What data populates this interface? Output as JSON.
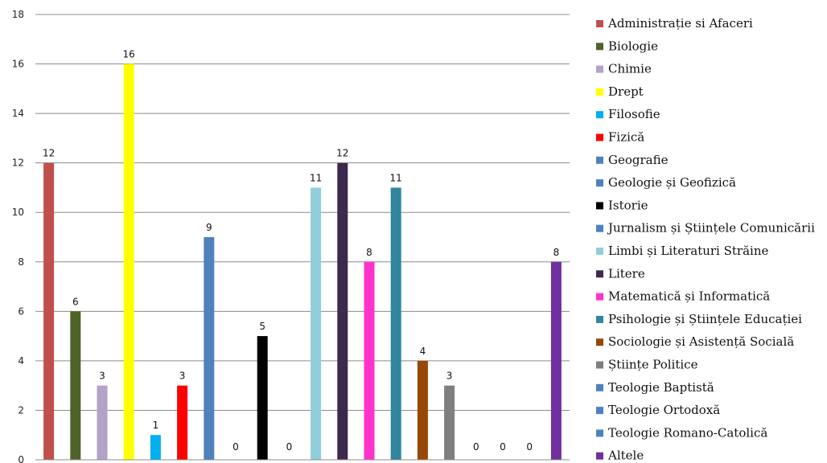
{
  "chart_data": {
    "type": "bar",
    "categories": [
      "Administrație si Afaceri",
      "Biologie",
      "Chimie",
      "Drept",
      "Filosofie",
      "Fizică",
      "Geografie",
      "Geologie și Geofizică",
      "Istorie",
      "Jurnalism și Științele Comunicării",
      "Limbi și Literaturi Străine",
      "Litere",
      "Matematică și Informatică",
      "Psihologie și Științele Educației",
      "Sociologie și Asistență Socială",
      "Științe Politice",
      "Teologie Baptistă",
      "Teologie Ortodoxă",
      "Teologie Romano-Catolică",
      "Altele"
    ],
    "values": [
      12,
      6,
      3,
      16,
      1,
      3,
      9,
      0,
      5,
      0,
      11,
      12,
      8,
      11,
      4,
      3,
      0,
      0,
      0,
      8
    ],
    "colors": [
      "#c0504d",
      "#4f6228",
      "#b3a2c7",
      "#ffff00",
      "#00b0f0",
      "#ff0000",
      "#4f81bd",
      "#4f81bd",
      "#000000",
      "#4f81bd",
      "#92cddc",
      "#3c2a4d",
      "#ff33cc",
      "#31859c",
      "#974706",
      "#7f7f7f",
      "#4f81bd",
      "#4f81bd",
      "#4f81bd",
      "#7030a0"
    ],
    "y_ticks": [
      "0",
      "2",
      "4",
      "6",
      "8",
      "10",
      "12",
      "14",
      "16",
      "18"
    ],
    "ylim": [
      0,
      18
    ],
    "grid": true,
    "legend_position": "right",
    "data_labels": true
  }
}
